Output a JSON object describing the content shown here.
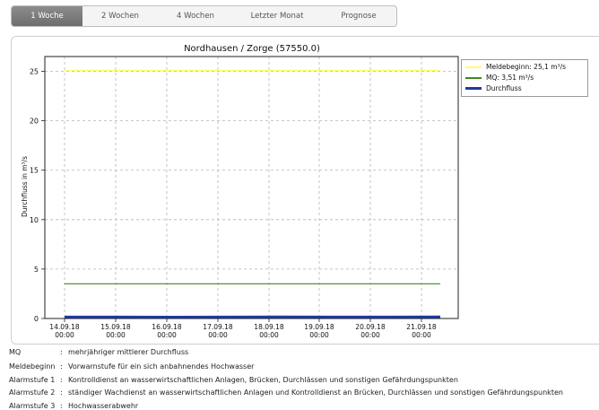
{
  "tabs": [
    {
      "label": "1 Woche",
      "active": true
    },
    {
      "label": "2 Wochen",
      "active": false
    },
    {
      "label": "4 Wochen",
      "active": false
    },
    {
      "label": "Letzter Monat",
      "active": false
    },
    {
      "label": "Prognose",
      "active": false
    }
  ],
  "chart_data": {
    "type": "line",
    "title": "Nordhausen / Zorge (57550.0)",
    "xlabel": "",
    "ylabel": "Durchfluss in m³/s",
    "ylim": [
      0,
      26.5
    ],
    "yticks": [
      0,
      5,
      10,
      15,
      20,
      25
    ],
    "xticks": [
      "14.09.18\n00:00",
      "15.09.18\n00:00",
      "16.09.18\n00:00",
      "17.09.18\n00:00",
      "18.09.18\n00:00",
      "19.09.18\n00:00",
      "20.09.18\n00:00",
      "21.09.18\n00:00"
    ],
    "grid": true,
    "legend_position": "outside-right",
    "series": [
      {
        "name": "Meldebeginn: 25,1 m³/s",
        "color": "#ffff66",
        "values": [
          25.1,
          25.1,
          25.1,
          25.1,
          25.1,
          25.1,
          25.1,
          25.1
        ]
      },
      {
        "name": "MQ: 3,51 m³/s",
        "color": "#3a8a1e",
        "values": [
          3.51,
          3.51,
          3.51,
          3.51,
          3.51,
          3.51,
          3.51,
          3.51
        ]
      },
      {
        "name": "Durchfluss",
        "color": "#1f3aa8",
        "values": [
          0.15,
          0.15,
          0.14,
          0.15,
          0.16,
          0.15,
          0.15,
          0.16
        ]
      }
    ]
  },
  "notes": [
    {
      "key": "MQ",
      "sep": ":",
      "text": "mehrjähriger mittlerer Durchfluss"
    },
    {
      "key": "Meldebeginn",
      "sep": ":",
      "text": "Vorwarnstufe für ein sich anbahnendes Hochwasser"
    },
    {
      "key": "Alarmstufe 1",
      "sep": ":",
      "text": "Kontrolldienst an wasserwirtschaftlichen Anlagen, Brücken, Durchlässen und sonstigen Gefährdungspunkten"
    },
    {
      "key": "Alarmstufe 2",
      "sep": ":",
      "text": "ständiger Wachdienst an wasserwirtschaftlichen Anlagen und Kontrolldienst an Brücken, Durchlässen und sonstigen Gefährdungspunkten"
    },
    {
      "key": "Alarmstufe 3",
      "sep": ":",
      "text": "Hochwasserabwehr"
    }
  ]
}
